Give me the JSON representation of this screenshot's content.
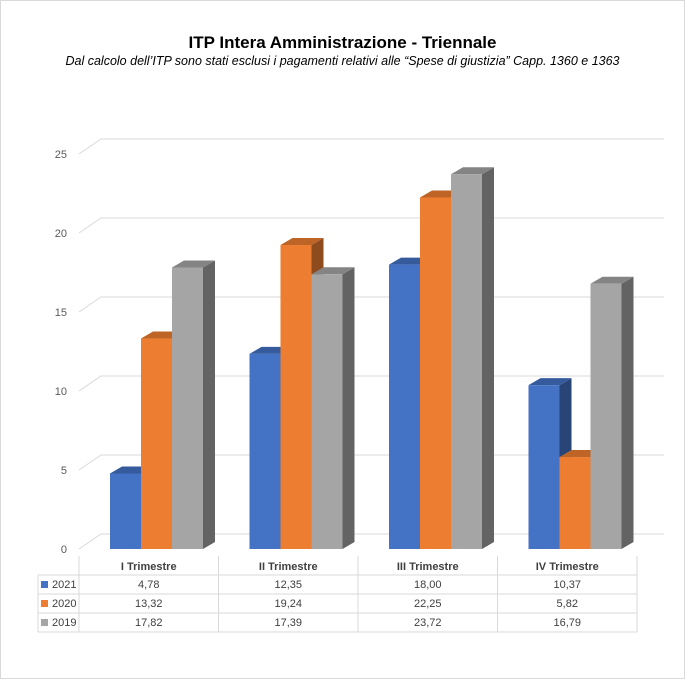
{
  "chart_data": {
    "type": "bar",
    "title": "ITP Intera Amministrazione - Triennale",
    "subtitle": "Dal calcolo dell’ITP sono stati esclusi i pagamenti relativi alle “Spese di giustizia” Capp. 1360 e 1363",
    "categories": [
      "I Trimestre",
      "II Trimestre",
      "III Trimestre",
      "IV Trimestre"
    ],
    "series": [
      {
        "name": "2021",
        "color": "#4472c4",
        "values": [
          4.78,
          12.35,
          18.0,
          10.37
        ],
        "labels": [
          "4,78",
          "12,35",
          "18,00",
          "10,37"
        ]
      },
      {
        "name": "2020",
        "color": "#ed7d31",
        "values": [
          13.32,
          19.24,
          22.25,
          5.82
        ],
        "labels": [
          "13,32",
          "19,24",
          "22,25",
          "5,82"
        ]
      },
      {
        "name": "2019",
        "color": "#a5a5a5",
        "values": [
          17.82,
          17.39,
          23.72,
          16.79
        ],
        "labels": [
          "17,82",
          "17,39",
          "23,72",
          "16,79"
        ]
      }
    ],
    "yticks": [
      "0",
      "5",
      "10",
      "15",
      "20",
      "25"
    ],
    "ylim": [
      0,
      25
    ],
    "grid": true,
    "legend": "data-table",
    "style": "3d-clustered-column"
  }
}
